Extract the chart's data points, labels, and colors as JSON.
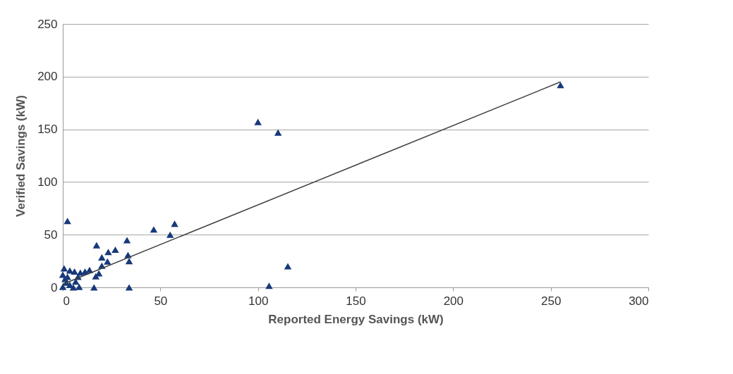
{
  "chart_data": {
    "type": "scatter",
    "xlabel": "Reported Energy Savings (kW)",
    "ylabel": "Verified Savings (kW)",
    "xlim": [
      0,
      300
    ],
    "ylim": [
      0,
      250
    ],
    "xticks": [
      0,
      50,
      100,
      150,
      200,
      250,
      300
    ],
    "yticks": [
      0,
      50,
      100,
      150,
      200,
      250
    ],
    "grid": "y",
    "series": [
      {
        "type": "scatter",
        "color": "#17397a",
        "marker": "triangle",
        "x": [
          255,
          100,
          110.3,
          115.3,
          105.7,
          2.4,
          46.6,
          57.3,
          55,
          32.9,
          17.3,
          26.9,
          23.3,
          20,
          33.4,
          34,
          22.9,
          20,
          18.5,
          16.9,
          16,
          34,
          13.7,
          11.4,
          9,
          6,
          3.6,
          0.7,
          0,
          1.2,
          1.8,
          3.6,
          6.6,
          8.4,
          5.4,
          0,
          2.4,
          7.8
        ],
        "values": [
          192,
          157,
          147,
          20,
          1.5,
          63,
          55,
          60.4,
          50,
          44.8,
          40,
          35.8,
          33.6,
          28.5,
          30.7,
          25,
          24.6,
          20.6,
          13.4,
          10.5,
          0,
          0,
          16.6,
          15,
          14,
          15,
          16,
          18,
          12,
          8,
          4.6,
          2.4,
          5.6,
          0.5,
          0,
          0.5,
          10,
          10
        ]
      },
      {
        "type": "line",
        "color": "#404040",
        "marker": "none",
        "line_style": "solid",
        "x": [
          0,
          255
        ],
        "values": [
          3,
          195
        ]
      }
    ]
  }
}
